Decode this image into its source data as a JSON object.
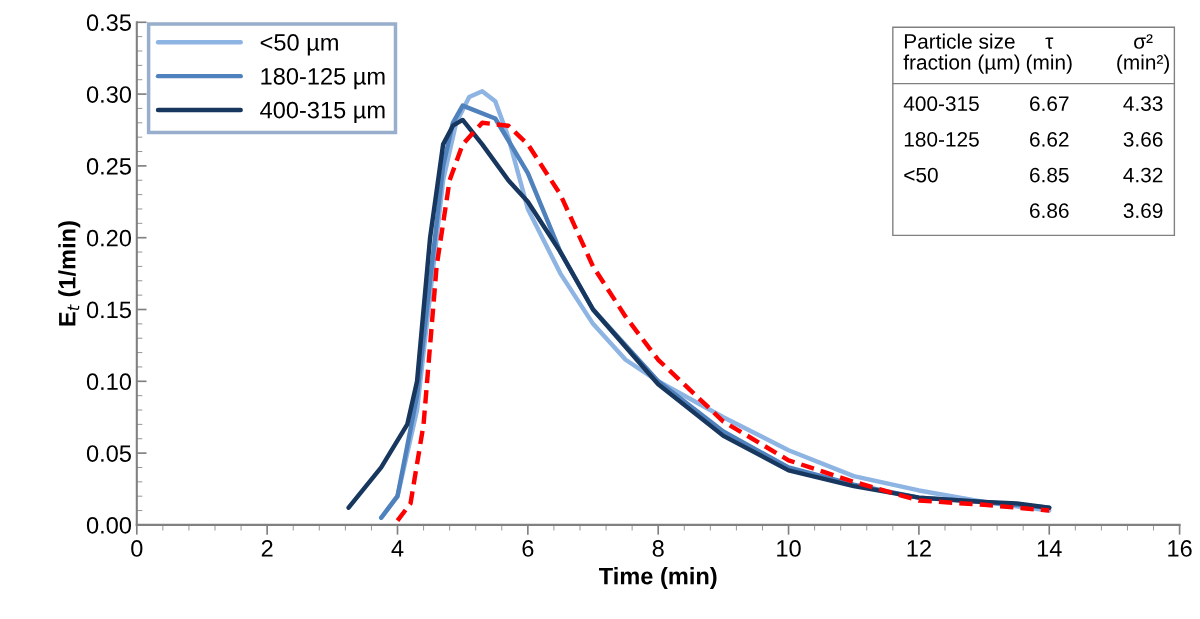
{
  "chart_data": {
    "type": "line",
    "xlabel": "Time (min)",
    "ylabel": "E$_{t}$ (1/min)",
    "xlim": [
      0,
      16
    ],
    "xticks": [
      0,
      2,
      4,
      6,
      8,
      10,
      12,
      14,
      16
    ],
    "ylim": [
      0,
      0.35
    ],
    "yticks": [
      {
        "value": 0,
        "label": "0.00"
      },
      {
        "value": 0.05,
        "label": "0.05"
      },
      {
        "value": 0.1,
        "label": "0.10"
      },
      {
        "value": 0.15,
        "label": "0.15"
      },
      {
        "value": 0.2,
        "label": "0.20"
      },
      {
        "value": 0.25,
        "label": "0.25"
      },
      {
        "value": 0.3,
        "label": "0.30"
      },
      {
        "value": 0.35,
        "label": "0.35"
      }
    ],
    "grid": false,
    "legend": "top left",
    "marker": "none",
    "series": [
      {
        "name": "<50 µm",
        "color": "#8db4e2",
        "line_style": "solid",
        "x": [
          3.75,
          4.0,
          4.3,
          4.5,
          4.7,
          4.9,
          5.1,
          5.3,
          5.5,
          5.7,
          6.0,
          6.5,
          7.0,
          7.5,
          8.0,
          9.0,
          10.0,
          11.0,
          12.0,
          13.0,
          14.0
        ],
        "values": [
          0.005,
          0.02,
          0.08,
          0.16,
          0.24,
          0.28,
          0.298,
          0.302,
          0.295,
          0.27,
          0.22,
          0.175,
          0.14,
          0.115,
          0.1,
          0.075,
          0.052,
          0.034,
          0.024,
          0.016,
          0.01
        ]
      },
      {
        "name": "180-125 µm",
        "color": "#4f81bd",
        "line_style": "solid",
        "x": [
          3.75,
          4.0,
          4.3,
          4.5,
          4.7,
          4.85,
          5.0,
          5.5,
          6.0,
          6.5,
          7.0,
          8.0,
          9.0,
          10.0,
          11.0,
          12.0,
          13.0,
          14.0
        ],
        "values": [
          0.005,
          0.02,
          0.09,
          0.17,
          0.25,
          0.28,
          0.292,
          0.283,
          0.245,
          0.19,
          0.15,
          0.1,
          0.065,
          0.04,
          0.028,
          0.019,
          0.016,
          0.012
        ]
      },
      {
        "name": "400-315 µm",
        "color": "#17375e",
        "line_style": "solid",
        "x": [
          3.25,
          3.75,
          4.15,
          4.3,
          4.5,
          4.7,
          4.85,
          5.0,
          5.3,
          5.7,
          6.0,
          6.5,
          7.0,
          8.0,
          9.0,
          10.0,
          11.0,
          12.0,
          13.0,
          13.5,
          14.0
        ],
        "values": [
          0.012,
          0.04,
          0.07,
          0.1,
          0.2,
          0.265,
          0.278,
          0.282,
          0.265,
          0.24,
          0.225,
          0.19,
          0.15,
          0.098,
          0.062,
          0.038,
          0.027,
          0.019,
          0.016,
          0.015,
          0.012
        ]
      },
      {
        "color": "#ff0000",
        "line_style": "dashed",
        "x": [
          4.0,
          4.2,
          4.4,
          4.6,
          4.8,
          5.0,
          5.3,
          5.7,
          6.0,
          6.5,
          7.0,
          7.5,
          8.0,
          9.0,
          10.0,
          11.0,
          12.0,
          13.0,
          14.0
        ],
        "values": [
          0.003,
          0.015,
          0.07,
          0.18,
          0.24,
          0.265,
          0.28,
          0.278,
          0.265,
          0.23,
          0.18,
          0.145,
          0.115,
          0.072,
          0.045,
          0.03,
          0.017,
          0.014,
          0.01
        ]
      }
    ],
    "annotations": [
      "Particle size\nfraction (µm)",
      "τ\n(min)",
      "σ²\n(min²)",
      "400-315",
      "6.67",
      "4.33",
      "180-125",
      "6.62",
      "3.66",
      "<50",
      "6.85",
      "4.32",
      "6.86",
      "3.69"
    ]
  }
}
